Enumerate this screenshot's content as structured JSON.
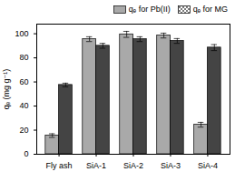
{
  "chart_data": {
    "type": "bar",
    "ylabel": "qₑ (mg g⁻¹)",
    "categories": [
      "Fly ash",
      "SiA-1",
      "SiA-2",
      "SiA-3",
      "SiA-4"
    ],
    "series": [
      {
        "name": "qₑ for Pb(II)",
        "color": "#a9a9a9",
        "values": [
          15.5,
          95.5,
          99.5,
          98.5,
          24.5
        ],
        "errors": [
          1.5,
          2,
          2.5,
          2,
          2
        ]
      },
      {
        "name": "qₑ for MG",
        "color": "#444444",
        "values": [
          57.5,
          90,
          95.5,
          94,
          88.5
        ],
        "errors": [
          1.5,
          2,
          2,
          2,
          2.5
        ]
      }
    ],
    "ylim": [
      0,
      108
    ],
    "yticks": [
      0,
      20,
      40,
      60,
      80,
      100
    ],
    "legend": "upper right"
  }
}
